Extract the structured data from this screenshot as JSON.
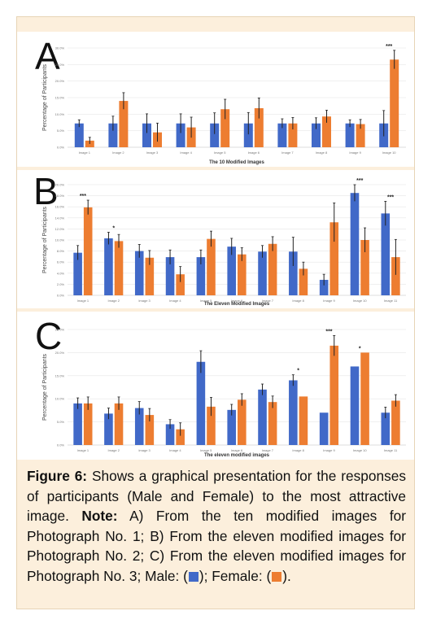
{
  "chart_data": [
    {
      "type": "bar",
      "panel": "A",
      "title": "",
      "xlabel": "The 10 Modified Images",
      "ylabel": "Percentage of Participants",
      "ylim": [
        0,
        30
      ],
      "categories": [
        "Image 1",
        "Image 2",
        "Image 3",
        "Image 4",
        "Image 5",
        "Image 6",
        "Image 7",
        "Image 8",
        "Image 9",
        "Image 10"
      ],
      "series": [
        {
          "name": "Male",
          "color": "#4169c8",
          "values": [
            7.2,
            7.2,
            7.2,
            7.2,
            7.2,
            7.2,
            7.2,
            7.2,
            7.2,
            7.2
          ],
          "err": [
            1.1,
            2.2,
            2.9,
            2.9,
            3.2,
            3.3,
            1.4,
            1.7,
            1.1,
            3.9
          ]
        },
        {
          "name": "Female",
          "color": "#ed7d31",
          "values": [
            2.0,
            14.0,
            4.5,
            6.0,
            11.5,
            11.8,
            7.2,
            9.3,
            7.0,
            26.5
          ],
          "err": [
            1.0,
            2.5,
            2.8,
            3.1,
            3.0,
            3.1,
            1.8,
            1.9,
            1.4,
            2.8
          ]
        }
      ],
      "annotations": [
        {
          "category": "Image 10",
          "text": "***"
        }
      ]
    },
    {
      "type": "bar",
      "panel": "B",
      "title": "",
      "xlabel": "The Eleven Modified Images",
      "ylabel": "Percentage of Participants",
      "ylim": [
        0,
        20
      ],
      "categories": [
        "Image 1",
        "Image 2",
        "Image 3",
        "Image 4",
        "Image 5",
        "Image 6",
        "Image 7",
        "Image 8",
        "Image 9",
        "Image 10",
        "Image 11"
      ],
      "series": [
        {
          "name": "Male",
          "color": "#4169c8",
          "values": [
            7.7,
            10.3,
            8.0,
            6.9,
            6.9,
            8.8,
            7.9,
            7.9,
            2.8,
            18.5,
            14.8
          ],
          "err": [
            1.3,
            1.1,
            1.2,
            1.3,
            1.3,
            1.5,
            1.1,
            2.6,
            1.0,
            1.5,
            2.2
          ]
        },
        {
          "name": "Female",
          "color": "#ed7d31",
          "values": [
            15.9,
            9.8,
            6.8,
            3.8,
            10.2,
            7.4,
            9.3,
            4.8,
            13.2,
            10.0,
            6.9
          ],
          "err": [
            1.3,
            1.2,
            1.3,
            1.4,
            1.4,
            1.2,
            1.3,
            1.2,
            3.5,
            2.2,
            3.2
          ]
        }
      ],
      "annotations": [
        {
          "category": "Image 1",
          "text": "***"
        },
        {
          "category": "Image 2",
          "text": "*"
        },
        {
          "category": "Image 10",
          "text": "***"
        },
        {
          "category": "Image 11",
          "text": "***"
        }
      ]
    },
    {
      "type": "bar",
      "panel": "C",
      "title": "",
      "xlabel": "The eleven modified images",
      "ylabel": "Percentage of Participants",
      "ylim": [
        0,
        25
      ],
      "categories": [
        "Image 1",
        "Image 2",
        "Image 3",
        "Image 4",
        "Image 5",
        "Image 6",
        "Image 7",
        "Image 8",
        "Image 9",
        "Image 10",
        "Image 11"
      ],
      "series": [
        {
          "name": "Male",
          "color": "#4169c8",
          "values": [
            9.0,
            6.8,
            8.0,
            4.5,
            18.0,
            7.6,
            12.0,
            14.0,
            7.0,
            17.0,
            7.0
          ],
          "err": [
            1.2,
            1.2,
            1.4,
            1.0,
            2.4,
            1.2,
            1.2,
            1.2,
            0.0,
            0.0,
            1.2
          ]
        },
        {
          "name": "Female",
          "color": "#ed7d31",
          "values": [
            9.0,
            9.0,
            6.5,
            3.4,
            8.3,
            9.8,
            9.3,
            10.5,
            21.5,
            20.0,
            9.6
          ],
          "err": [
            1.4,
            1.4,
            1.4,
            1.4,
            2.0,
            1.3,
            1.3,
            0.0,
            2.2,
            0.0,
            1.3
          ]
        }
      ],
      "annotations": [
        {
          "category": "Image 8",
          "text": "*"
        },
        {
          "category": "Image 9",
          "text": "***"
        },
        {
          "category": "Image 10",
          "text": "*"
        }
      ]
    }
  ],
  "panel_labels": [
    "A",
    "B",
    "C"
  ],
  "caption": {
    "figure_label": "Figure 6:",
    "text": "Shows a graphical presentation for the responses of participants (Male and Female) to the most attractive image.",
    "note_label": "Note:",
    "note_text_1": "A) From the ten modified images for Photograph No. 1; B) From the eleven modified images for Photograph No. 2; C) From the eleven modified images for Photograph No. 3; Male: (",
    "note_text_2": "); Female: (",
    "note_text_3": ")."
  },
  "legend_colors": {
    "male": "#4169c8",
    "female": "#ed7d31"
  }
}
